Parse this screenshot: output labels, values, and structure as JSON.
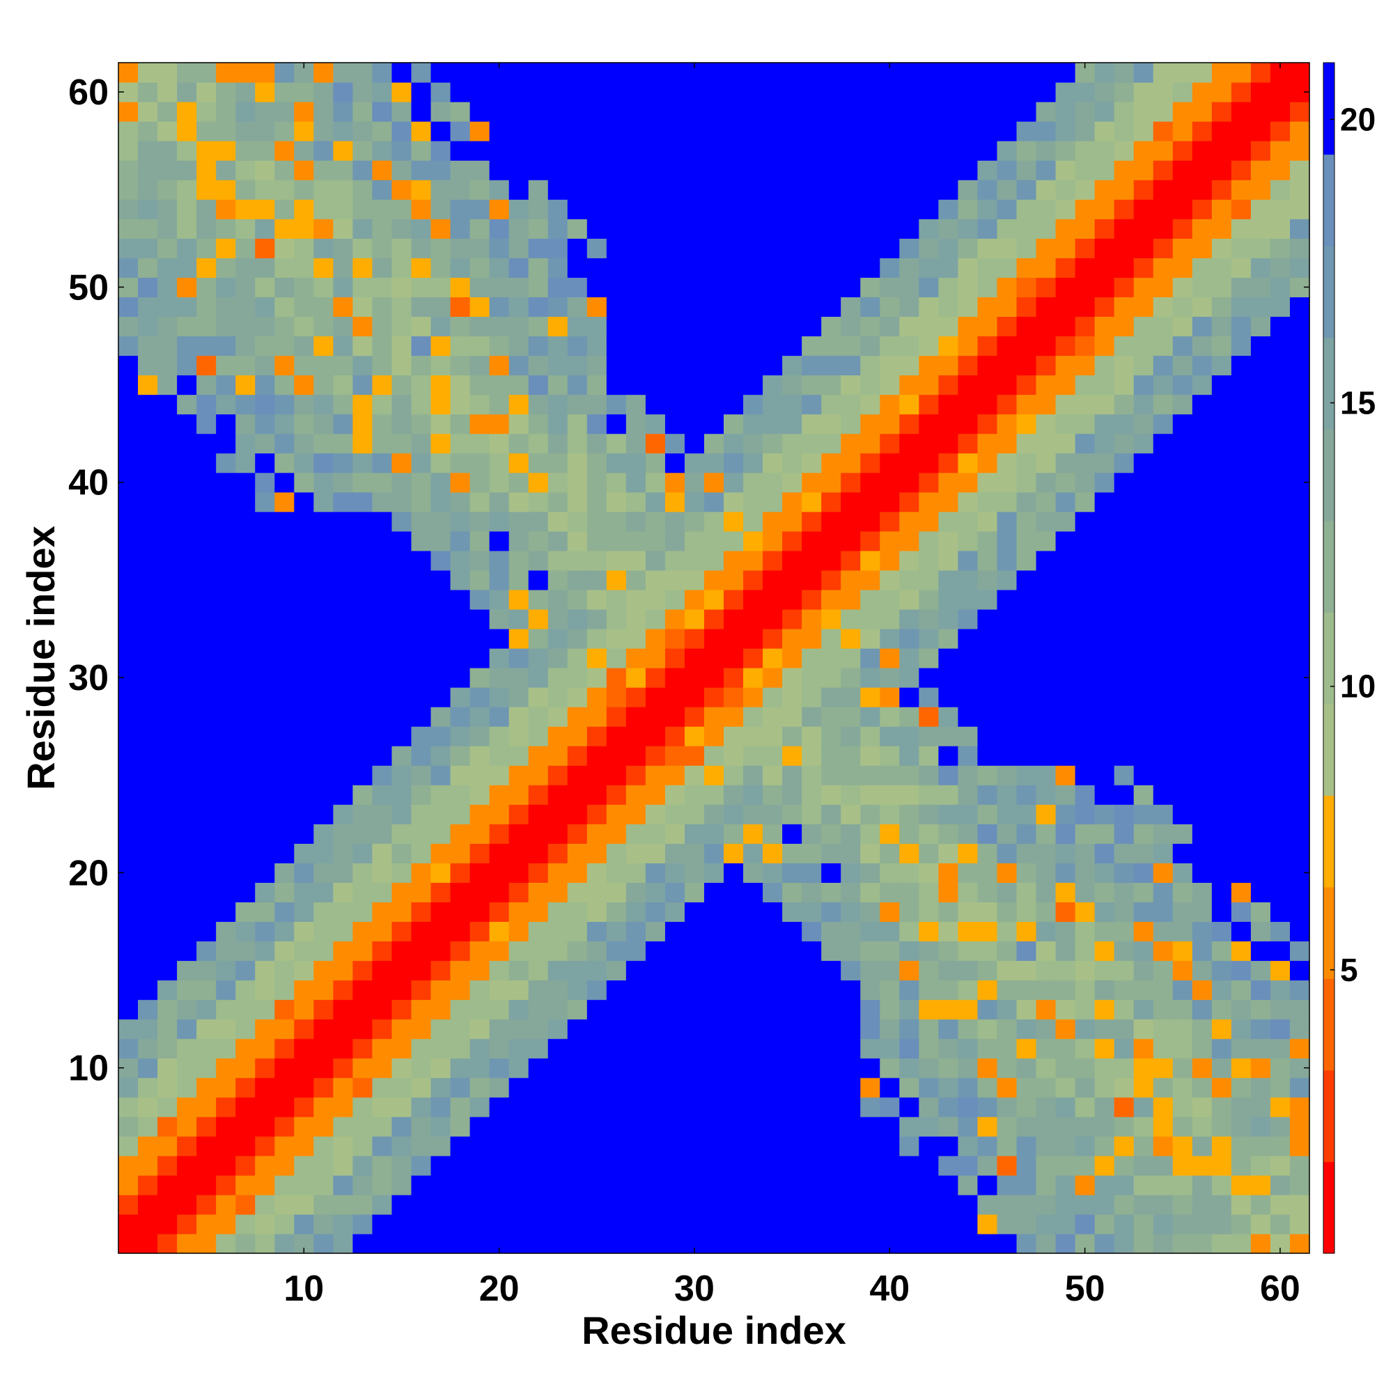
{
  "chart_data": {
    "type": "heatmap",
    "title": "",
    "xlabel": "Residue index",
    "ylabel": "Residue index",
    "xlim": [
      1,
      61
    ],
    "ylim": [
      1,
      61
    ],
    "x_ticks": [
      10,
      20,
      30,
      40,
      50,
      60
    ],
    "y_ticks": [
      10,
      20,
      30,
      40,
      50,
      60
    ],
    "colorbar": {
      "ticks": [
        5,
        10,
        15,
        20
      ],
      "range": [
        0,
        21
      ],
      "colors": [
        "#ff0000",
        "#ff3d00",
        "#ff6600",
        "#ff8c00",
        "#ffad00",
        "#a8c088",
        "#9dbb8c",
        "#8fb092",
        "#86a89a",
        "#7ea3a3",
        "#6f97b1",
        "#6a8fbb",
        "#0000ff"
      ]
    },
    "description_of_data": "Symmetric residue distance map: values grow with |i-j|; red/orange along the main diagonal, green-blue band around it, blue (>20) far from diagonal, with a second green/blue band along the anti-diagonal (contacts between N- and C-terminal halves)."
  }
}
